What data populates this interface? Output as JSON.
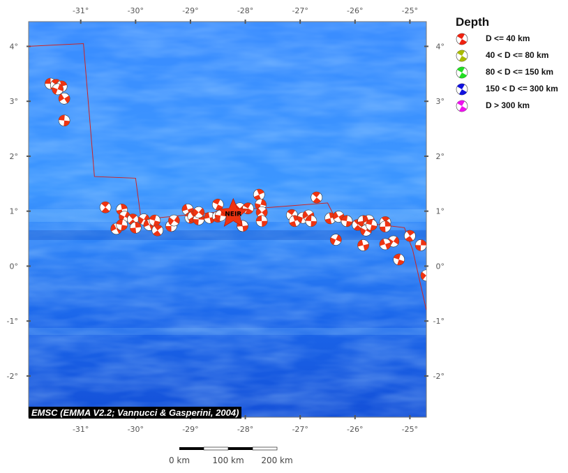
{
  "map": {
    "lon_labels": [
      "-31°",
      "-30°",
      "-29°",
      "-28°",
      "-27°",
      "-26°",
      "-25°"
    ],
    "lat_labels": [
      "4°",
      "3°",
      "2°",
      "1°",
      "0°",
      "-1°",
      "-2°"
    ],
    "lon_values": [
      -31,
      -30,
      -29,
      -28,
      -27,
      -26,
      -25
    ],
    "lat_values": [
      4,
      3,
      2,
      1,
      0,
      -1,
      -2
    ],
    "lon_range": [
      -31.95,
      -24.7
    ],
    "lat_range": [
      -2.75,
      4.45
    ],
    "colors": {
      "ocean_deep": "#0a55e0",
      "ocean_shallow": "#4aa8ff",
      "event": "#ee3311",
      "star": "#ee3311",
      "plate_boundary": "#cc2222"
    }
  },
  "station": {
    "label": "NEIR",
    "lon": -28.22,
    "lat": 0.95
  },
  "plate_boundary": [
    [
      -31.95,
      4.0
    ],
    [
      -30.95,
      4.05
    ],
    [
      -30.75,
      1.63
    ],
    [
      -30.0,
      1.6
    ],
    [
      -29.9,
      0.85
    ],
    [
      -27.8,
      1.05
    ],
    [
      -26.5,
      1.15
    ],
    [
      -26.35,
      0.85
    ],
    [
      -25.1,
      0.7
    ],
    [
      -24.95,
      0.3
    ],
    [
      -24.7,
      -0.8
    ]
  ],
  "events": [
    [
      -31.55,
      3.32
    ],
    [
      -31.45,
      3.3
    ],
    [
      -31.35,
      3.27
    ],
    [
      -31.42,
      3.22
    ],
    [
      -31.3,
      3.05
    ],
    [
      -31.3,
      2.65
    ],
    [
      -30.55,
      1.07
    ],
    [
      -30.25,
      1.03
    ],
    [
      -30.2,
      0.9
    ],
    [
      -30.35,
      0.68
    ],
    [
      -30.25,
      0.75
    ],
    [
      -30.05,
      0.85
    ],
    [
      -30.0,
      0.7
    ],
    [
      -29.85,
      0.85
    ],
    [
      -29.75,
      0.75
    ],
    [
      -29.65,
      0.83
    ],
    [
      -29.6,
      0.65
    ],
    [
      -29.35,
      0.73
    ],
    [
      -29.3,
      0.83
    ],
    [
      -29.05,
      1.03
    ],
    [
      -29.0,
      0.88
    ],
    [
      -28.95,
      0.9
    ],
    [
      -28.85,
      0.85
    ],
    [
      -28.85,
      0.98
    ],
    [
      -28.65,
      0.88
    ],
    [
      -28.5,
      1.12
    ],
    [
      -28.5,
      0.9
    ],
    [
      -28.45,
      0.92
    ],
    [
      -28.1,
      1.05
    ],
    [
      -28.05,
      0.73
    ],
    [
      -27.95,
      1.05
    ],
    [
      -27.75,
      1.3
    ],
    [
      -27.72,
      1.12
    ],
    [
      -27.7,
      0.98
    ],
    [
      -27.7,
      0.82
    ],
    [
      -27.15,
      0.93
    ],
    [
      -27.1,
      0.82
    ],
    [
      -26.95,
      0.88
    ],
    [
      -26.85,
      0.92
    ],
    [
      -26.8,
      0.82
    ],
    [
      -26.7,
      1.25
    ],
    [
      -26.45,
      0.87
    ],
    [
      -26.35,
      0.48
    ],
    [
      -26.3,
      0.9
    ],
    [
      -26.15,
      0.82
    ],
    [
      -25.95,
      0.75
    ],
    [
      -25.85,
      0.82
    ],
    [
      -25.8,
      0.65
    ],
    [
      -25.75,
      0.83
    ],
    [
      -25.7,
      0.75
    ],
    [
      -25.45,
      0.8
    ],
    [
      -25.45,
      0.72
    ],
    [
      -25.3,
      0.45
    ],
    [
      -25.45,
      0.4
    ],
    [
      -25.2,
      0.12
    ],
    [
      -25.0,
      0.55
    ],
    [
      -24.8,
      0.38
    ],
    [
      -24.7,
      -0.17
    ],
    [
      -25.85,
      0.38
    ]
  ],
  "legend": {
    "title": "Depth",
    "items": [
      {
        "label": "D <= 40 km",
        "color": "#ee2211"
      },
      {
        "label": "40 < D <= 80 km",
        "color": "#aabb00"
      },
      {
        "label": "80 < D <= 150 km",
        "color": "#22dd22"
      },
      {
        "label": "150 < D <= 300 km",
        "color": "#1111dd"
      },
      {
        "label": "D > 300 km",
        "color": "#ee11ee"
      }
    ]
  },
  "credit": "EMSC (EMMA V2.2; Vannucci & Gasperini, 2004)",
  "scale_bar": {
    "labels": [
      "0 km",
      "100 km",
      "200 km"
    ]
  }
}
